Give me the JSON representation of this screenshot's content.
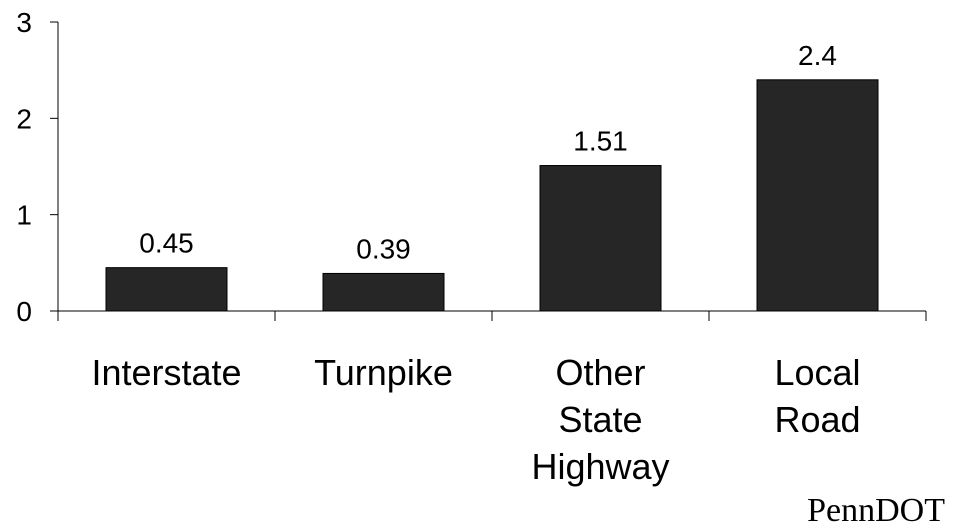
{
  "chart_data": {
    "type": "bar",
    "categories": [
      [
        "Interstate"
      ],
      [
        "Turnpike"
      ],
      [
        "Other",
        "State",
        "Highway"
      ],
      [
        "Local",
        "Road"
      ]
    ],
    "values": [
      0.45,
      0.39,
      1.51,
      2.4
    ],
    "data_labels": [
      "0.45",
      "0.39",
      "1.51",
      "2.4"
    ],
    "ylim": [
      0,
      3
    ],
    "yticks": [
      0,
      1,
      2,
      3
    ],
    "bar_color": "#262626",
    "grid": false,
    "legend": "none"
  },
  "source": "PennDOT"
}
